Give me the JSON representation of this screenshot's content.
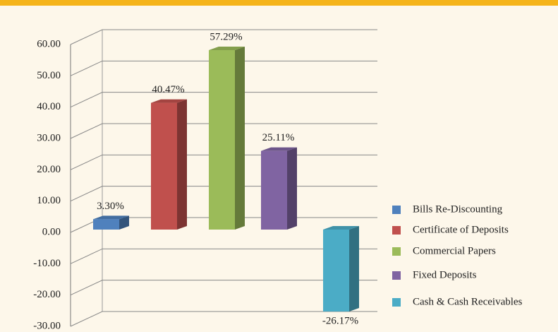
{
  "chart_data": {
    "type": "bar3d",
    "series": [
      {
        "name": "Bills Re-Discounting",
        "color": "#4f81bd",
        "values": [
          3.3
        ],
        "value_labels": [
          "3.30%"
        ]
      },
      {
        "name": "Certificate of Deposits",
        "color": "#c0504d",
        "values": [
          40.47
        ],
        "value_labels": [
          "40.47%"
        ]
      },
      {
        "name": "Commercial Papers",
        "color": "#9bbb59",
        "values": [
          57.29
        ],
        "value_labels": [
          "57.29%"
        ]
      },
      {
        "name": "Fixed Deposits",
        "color": "#8064a2",
        "values": [
          25.11
        ],
        "value_labels": [
          "25.11%"
        ]
      },
      {
        "name": "Cash & Cash Receivables",
        "color": "#4bacc6",
        "values": [
          -26.17
        ],
        "value_labels": [
          "-26.17%"
        ]
      }
    ],
    "ylim": [
      -30,
      60
    ],
    "yticks": [
      {
        "value": -30,
        "label": "-30.00"
      },
      {
        "value": -20,
        "label": "-20.00"
      },
      {
        "value": -10,
        "label": "-10.00"
      },
      {
        "value": 0,
        "label": "0.00"
      },
      {
        "value": 10,
        "label": "10.00"
      },
      {
        "value": 20,
        "label": "20.00"
      },
      {
        "value": 30,
        "label": "30.00"
      },
      {
        "value": 40,
        "label": "40.00"
      },
      {
        "value": 50,
        "label": "50.00"
      },
      {
        "value": 60,
        "label": "60.00"
      }
    ],
    "grid": true,
    "legend": "right"
  }
}
